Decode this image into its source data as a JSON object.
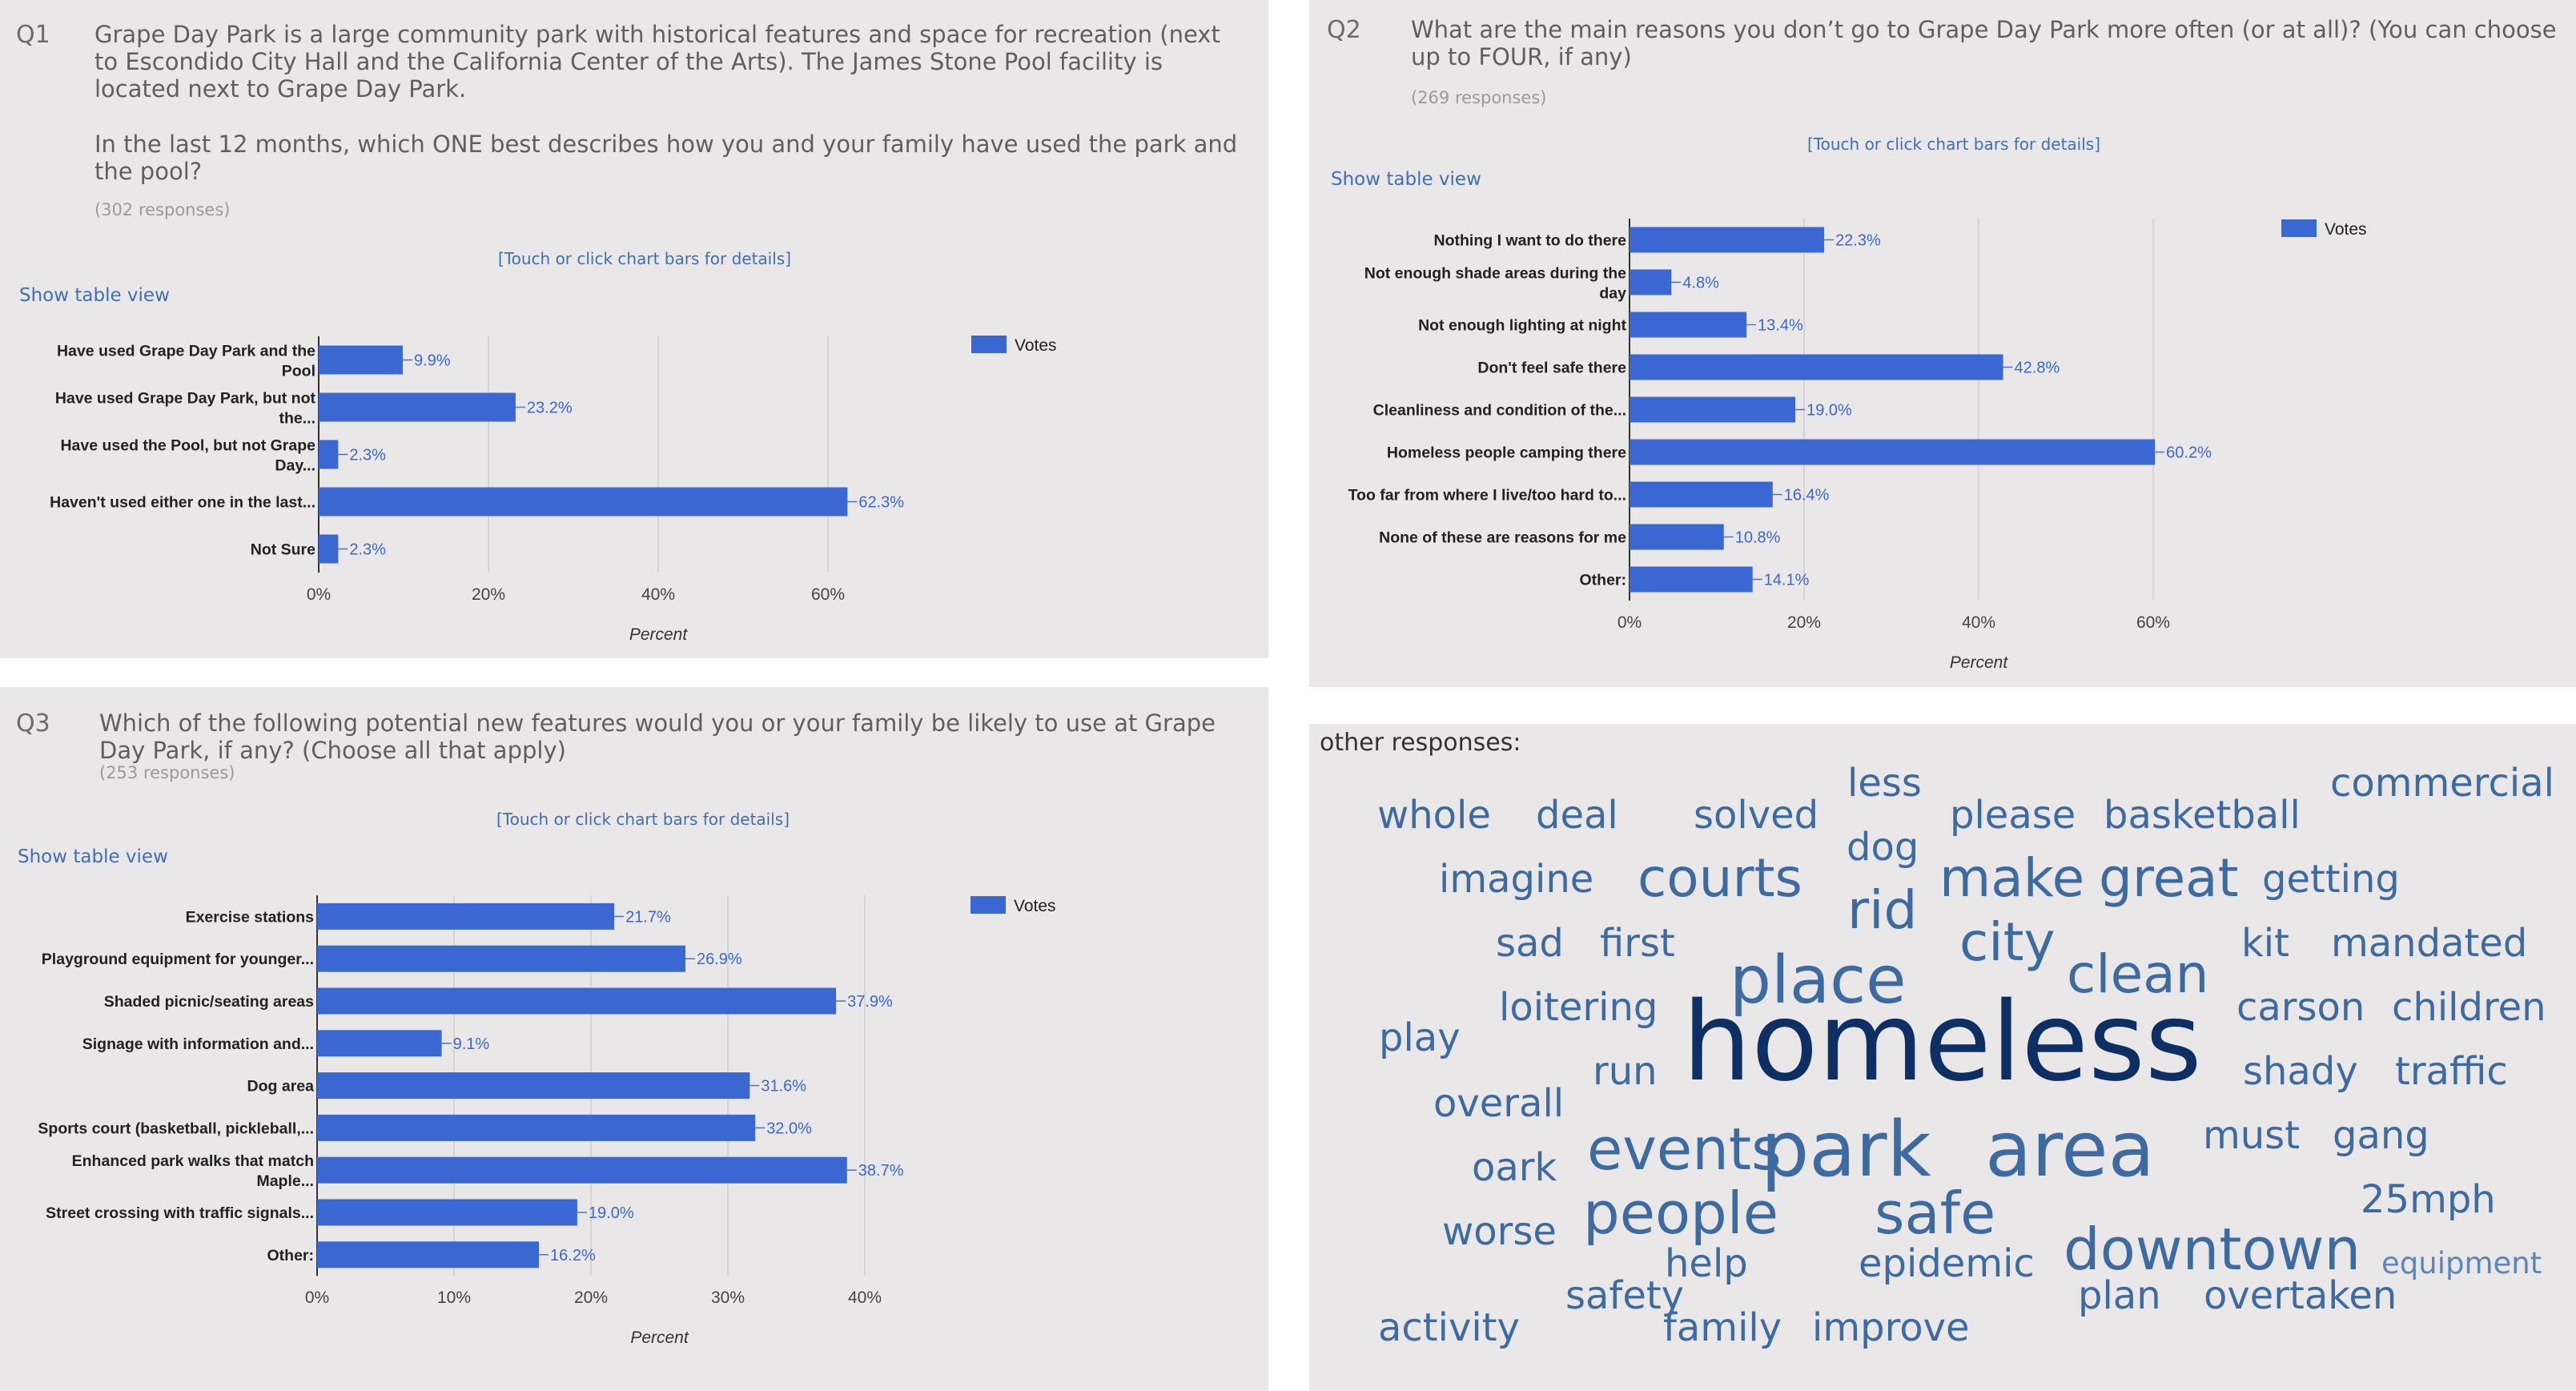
{
  "q1": {
    "num": "Q1",
    "text": "Grape Day Park is a large community park with historical features and space for recreation (next to Escondido City Hall and the California Center of the Arts). The James Stone Pool facility is located next to Grape Day Park.",
    "text2": "In the last 12 months, which ONE best describes how you and your family have used the park and the pool?",
    "responses": "(302 responses)",
    "touch": "[Touch or click chart bars for details]",
    "table_view": "Show table view"
  },
  "q2": {
    "num": "Q2",
    "text": "What are the main reasons you don’t go to Grape Day Park more often (or at all)? (You can choose up to FOUR, if any)",
    "responses": "(269 responses)",
    "touch": "[Touch or click chart bars for details]",
    "table_view": "Show table view"
  },
  "q3": {
    "num": "Q3",
    "text": "Which of the following potential new features would you or your family be likely to use at Grape Day Park, if any? (Choose all that apply)",
    "responses": "(253 responses)",
    "touch": "[Touch or click chart bars for details]",
    "table_view": "Show table view"
  },
  "chart_data": [
    {
      "type": "bar",
      "orientation": "horizontal",
      "categories": [
        [
          "Have used Grape Day Park and the",
          "Pool"
        ],
        [
          "Have used Grape Day Park, but not",
          "the..."
        ],
        [
          "Have used the Pool, but not Grape",
          "Day..."
        ],
        [
          "Haven't used either one in the last..."
        ],
        [
          "Not Sure"
        ]
      ],
      "series": [
        {
          "name": "Votes",
          "values": [
            9.9,
            23.2,
            2.3,
            62.3,
            2.3
          ]
        }
      ],
      "value_labels": [
        "9.9%",
        "23.2%",
        "2.3%",
        "62.3%",
        "2.3%"
      ],
      "xlabel": "Percent",
      "xticks": [
        "0%",
        "20%",
        "40%",
        "60%"
      ],
      "xlim": [
        0,
        80
      ],
      "grid": true,
      "legend": "top-right",
      "color": "#3a67d2"
    },
    {
      "type": "bar",
      "orientation": "horizontal",
      "categories": [
        [
          "Nothing I want to do there"
        ],
        [
          "Not enough shade areas during the",
          "day"
        ],
        [
          "Not enough lighting at night"
        ],
        [
          "Don't feel safe there"
        ],
        [
          "Cleanliness and condition of the..."
        ],
        [
          "Homeless people camping there"
        ],
        [
          "Too far from where I live/too hard to..."
        ],
        [
          "None of these are reasons for me"
        ],
        [
          "Other:"
        ]
      ],
      "series": [
        {
          "name": "Votes",
          "values": [
            22.3,
            4.8,
            13.4,
            42.8,
            19.0,
            60.2,
            16.4,
            10.8,
            14.1
          ]
        }
      ],
      "value_labels": [
        "22.3%",
        "4.8%",
        "13.4%",
        "42.8%",
        "19.0%",
        "60.2%",
        "16.4%",
        "10.8%",
        "14.1%"
      ],
      "xlabel": "Percent",
      "xticks": [
        "0%",
        "20%",
        "40%",
        "60%"
      ],
      "xlim": [
        0,
        80
      ],
      "grid": true,
      "legend": "top-right",
      "color": "#3a67d2"
    },
    {
      "type": "bar",
      "orientation": "horizontal",
      "categories": [
        [
          "Exercise stations"
        ],
        [
          "Playground equipment for younger..."
        ],
        [
          "Shaded picnic/seating areas"
        ],
        [
          "Signage with information and..."
        ],
        [
          "Dog area"
        ],
        [
          "Sports court (basketball, pickleball,..."
        ],
        [
          "Enhanced park walks that match",
          "Maple..."
        ],
        [
          "Street crossing with traffic signals..."
        ],
        [
          "Other:"
        ]
      ],
      "series": [
        {
          "name": "Votes",
          "values": [
            21.7,
            26.9,
            37.9,
            9.1,
            31.6,
            32.0,
            38.7,
            19.0,
            16.2
          ]
        }
      ],
      "value_labels": [
        "21.7%",
        "26.9%",
        "37.9%",
        "9.1%",
        "31.6%",
        "32.0%",
        "38.7%",
        "19.0%",
        "16.2%"
      ],
      "xlabel": "Percent",
      "xticks": [
        "0%",
        "10%",
        "20%",
        "30%",
        "40%"
      ],
      "xlim": [
        0,
        50
      ],
      "grid": true,
      "legend": "top-right",
      "color": "#3a67d2"
    }
  ],
  "wordcloud": {
    "title": "other responses:",
    "words": [
      "whole",
      "deal",
      "solved",
      "less",
      "please",
      "basketball",
      "commercial",
      "dog",
      "imagine",
      "courts",
      "rid",
      "make",
      "great",
      "getting",
      "sad",
      "first",
      "city",
      "kit",
      "mandated",
      "place",
      "clean",
      "play",
      "loitering",
      "carson",
      "children",
      "homeless",
      "run",
      "shady",
      "traffic",
      "overall",
      "park",
      "area",
      "events",
      "must",
      "gang",
      "oark",
      "people",
      "safe",
      "25mph",
      "worse",
      "downtown",
      "help",
      "epidemic",
      "equipment",
      "safety",
      "plan",
      "overtaken",
      "activity",
      "family",
      "improve"
    ],
    "colors": {
      "dark": "#0d2f63",
      "mid": "#3d6aa0",
      "light": "#5a87b8"
    }
  }
}
